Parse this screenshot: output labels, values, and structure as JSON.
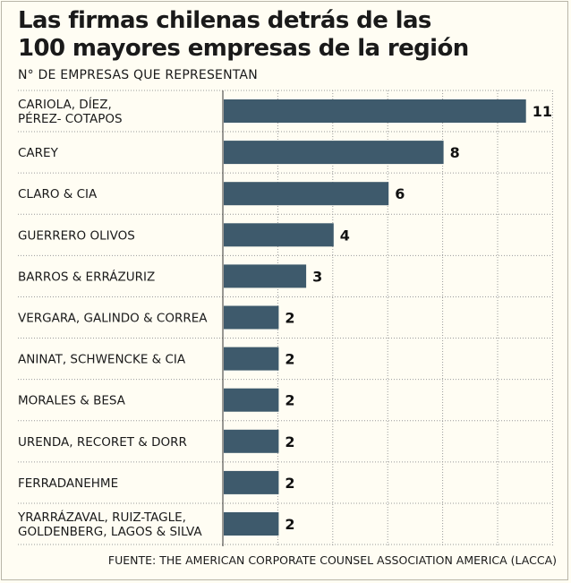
{
  "title_line1": "Las firmas chilenas  detrás de las",
  "title_line2": "100 mayores empresas de la región",
  "subtitle": "N° DE EMPRESAS  QUE REPRESENTAN",
  "source": "FUENTE: THE AMERICAN CORPORATE COUNSEL ASSOCIATION AMERICA (LACCA)",
  "colors": {
    "bar": "#3e5a6c",
    "background": "#fffdf3",
    "grid": "#9a9a9a"
  },
  "chart_data": {
    "type": "bar",
    "orientation": "horizontal",
    "categories": [
      [
        "CARIOLA, DÍEZ,",
        "PÉREZ- COTAPOS"
      ],
      [
        "CAREY"
      ],
      [
        "CLARO & CIA"
      ],
      [
        "GUERRERO OLIVOS"
      ],
      [
        "BARROS & ERRÁZURIZ"
      ],
      [
        "VERGARA, GALINDO & CORREA"
      ],
      [
        "ANINAT, SCHWENCKE & CIA"
      ],
      [
        "MORALES & BESA"
      ],
      [
        "URENDA, RECORET & DORR"
      ],
      [
        "FERRADANEHME"
      ],
      [
        "YRARRÁZAVAL, RUIZ-TAGLE,",
        "GOLDENBERG, LAGOS & SILVA"
      ]
    ],
    "values": [
      11,
      8,
      6,
      4,
      3,
      2,
      2,
      2,
      2,
      2,
      2
    ],
    "xlim": [
      0,
      12
    ],
    "grid": true
  }
}
